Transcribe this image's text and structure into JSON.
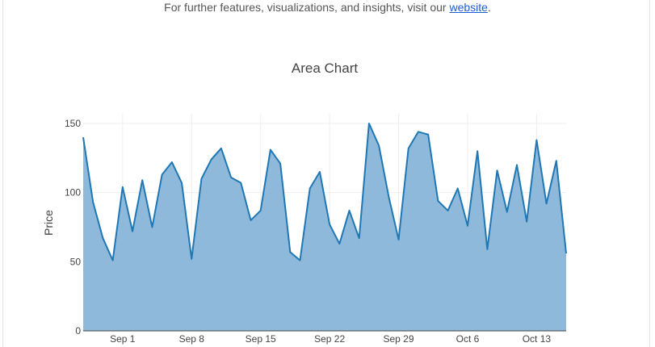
{
  "banner": {
    "text_before": "For further features, visualizations, and insights, visit our ",
    "link_text": "website",
    "text_after": "."
  },
  "chart_data": {
    "type": "area",
    "title": "Area Chart",
    "xlabel": "",
    "ylabel": "Price",
    "x_start": "2023-08-28",
    "x_end": "2023-10-16",
    "x_ticks": [
      "Sep 1",
      "Sep 8",
      "Sep 15",
      "Sep 22",
      "Sep 29",
      "Oct 6",
      "Oct 13"
    ],
    "y_ticks": [
      0,
      50,
      100,
      150
    ],
    "ylim": [
      0,
      150
    ],
    "grid": true,
    "colors": {
      "line": "#1f77b4",
      "fill": "#8fb9da"
    },
    "series": [
      {
        "x": [
          "2023-08-28",
          "2023-08-29",
          "2023-08-30",
          "2023-08-31",
          "2023-09-01",
          "2023-09-02",
          "2023-09-03",
          "2023-09-04",
          "2023-09-05",
          "2023-09-06",
          "2023-09-07",
          "2023-09-08",
          "2023-09-09",
          "2023-09-10",
          "2023-09-11",
          "2023-09-12",
          "2023-09-13",
          "2023-09-14",
          "2023-09-15",
          "2023-09-16",
          "2023-09-17",
          "2023-09-18",
          "2023-09-19",
          "2023-09-20",
          "2023-09-21",
          "2023-09-22",
          "2023-09-23",
          "2023-09-24",
          "2023-09-25",
          "2023-09-26",
          "2023-09-27",
          "2023-09-28",
          "2023-09-29",
          "2023-09-30",
          "2023-10-01",
          "2023-10-02",
          "2023-10-03",
          "2023-10-04",
          "2023-10-05",
          "2023-10-06",
          "2023-10-07",
          "2023-10-08",
          "2023-10-09",
          "2023-10-10",
          "2023-10-11",
          "2023-10-12",
          "2023-10-13",
          "2023-10-14",
          "2023-10-15",
          "2023-10-16"
        ],
        "values": [
          140,
          93,
          67,
          51,
          104,
          72,
          109,
          75,
          113,
          122,
          107,
          52,
          110,
          124,
          132,
          111,
          107,
          80,
          87,
          131,
          121,
          57,
          51,
          103,
          115,
          77,
          63,
          87,
          67,
          150,
          134,
          97,
          66,
          132,
          144,
          142,
          94,
          87,
          103,
          76,
          130,
          59,
          116,
          86,
          120,
          79,
          138,
          92,
          123,
          56
        ]
      }
    ]
  }
}
